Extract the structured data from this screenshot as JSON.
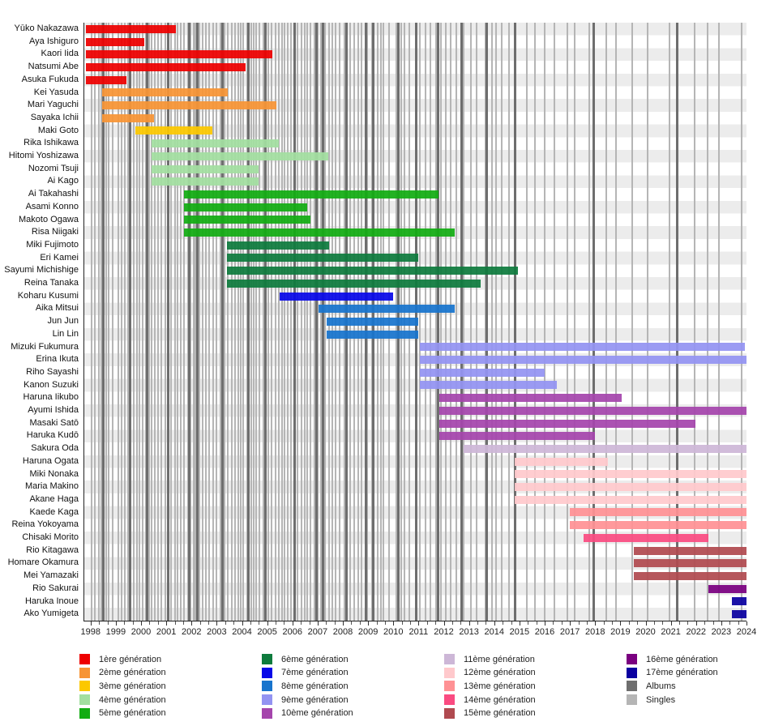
{
  "chart_data": {
    "type": "bar",
    "subtype": "gantt-membership-timeline",
    "title": "",
    "x_axis": {
      "min": 1997.75,
      "max": 2024.0,
      "tick_years": [
        1998,
        1999,
        2000,
        2001,
        2002,
        2003,
        2004,
        2005,
        2006,
        2007,
        2008,
        2009,
        2010,
        2011,
        2012,
        2013,
        2014,
        2015,
        2016,
        2017,
        2018,
        2019,
        2020,
        2021,
        2022,
        2023,
        2024
      ]
    },
    "generations": [
      {
        "id": 1,
        "label": "1ère génération",
        "color": "#EE0000"
      },
      {
        "id": 2,
        "label": "2ème génération",
        "color": "#F79435"
      },
      {
        "id": 3,
        "label": "3ème génération",
        "color": "#FCC800"
      },
      {
        "id": 4,
        "label": "4ème génération",
        "color": "#A2DFA0"
      },
      {
        "id": 5,
        "label": "5ème génération",
        "color": "#12AC12"
      },
      {
        "id": 6,
        "label": "6ème génération",
        "color": "#0E7B3D"
      },
      {
        "id": 7,
        "label": "7ème génération",
        "color": "#0707E8"
      },
      {
        "id": 8,
        "label": "8ème génération",
        "color": "#1874CD"
      },
      {
        "id": 9,
        "label": "9ème génération",
        "color": "#9393F2"
      },
      {
        "id": 10,
        "label": "10ème génération",
        "color": "#A545AC"
      },
      {
        "id": 11,
        "label": "11ème génération",
        "color": "#CDB7D7"
      },
      {
        "id": 12,
        "label": "12ème génération",
        "color": "#FFC9CC"
      },
      {
        "id": 13,
        "label": "13ème génération",
        "color": "#FF9194"
      },
      {
        "id": 14,
        "label": "14ème génération",
        "color": "#FA4B81"
      },
      {
        "id": 15,
        "label": "15ème génération",
        "color": "#B04A50"
      },
      {
        "id": 16,
        "label": "16ème génération",
        "color": "#7A0080"
      },
      {
        "id": 17,
        "label": "17ème génération",
        "color": "#0A00A0"
      }
    ],
    "members": [
      {
        "name": "Yūko Nakazawa",
        "gen": 1,
        "start": 1997.82,
        "end": 2001.37
      },
      {
        "name": "Aya Ishiguro",
        "gen": 1,
        "start": 1997.82,
        "end": 2000.12
      },
      {
        "name": "Kaori Iida",
        "gen": 1,
        "start": 1997.82,
        "end": 2005.2
      },
      {
        "name": "Natsumi Abe",
        "gen": 1,
        "start": 1997.82,
        "end": 2004.15
      },
      {
        "name": "Asuka Fukuda",
        "gen": 1,
        "start": 1997.82,
        "end": 1999.42
      },
      {
        "name": "Kei Yasuda",
        "gen": 2,
        "start": 1998.45,
        "end": 2003.45
      },
      {
        "name": "Mari Yaguchi",
        "gen": 2,
        "start": 1998.45,
        "end": 2005.37
      },
      {
        "name": "Sayaka Ichii",
        "gen": 2,
        "start": 1998.45,
        "end": 2000.5
      },
      {
        "name": "Maki Goto",
        "gen": 3,
        "start": 1999.78,
        "end": 2002.82
      },
      {
        "name": "Rika Ishikawa",
        "gen": 4,
        "start": 2000.42,
        "end": 2005.45
      },
      {
        "name": "Hitomi Yoshizawa",
        "gen": 4,
        "start": 2000.42,
        "end": 2007.42
      },
      {
        "name": "Nozomi Tsuji",
        "gen": 4,
        "start": 2000.42,
        "end": 2004.65
      },
      {
        "name": "Ai Kago",
        "gen": 4,
        "start": 2000.42,
        "end": 2004.65
      },
      {
        "name": "Ai Takahashi",
        "gen": 5,
        "start": 2001.7,
        "end": 2011.78
      },
      {
        "name": "Asami Konno",
        "gen": 5,
        "start": 2001.7,
        "end": 2006.6
      },
      {
        "name": "Makoto Ogawa",
        "gen": 5,
        "start": 2001.7,
        "end": 2006.7
      },
      {
        "name": "Risa Niigaki",
        "gen": 5,
        "start": 2001.7,
        "end": 2012.42
      },
      {
        "name": "Miki Fujimoto",
        "gen": 6,
        "start": 2003.4,
        "end": 2007.45
      },
      {
        "name": "Eri Kamei",
        "gen": 6,
        "start": 2003.4,
        "end": 2011.0
      },
      {
        "name": "Sayumi Michishige",
        "gen": 6,
        "start": 2003.4,
        "end": 2014.95
      },
      {
        "name": "Reina Tanaka",
        "gen": 6,
        "start": 2003.4,
        "end": 2013.45
      },
      {
        "name": "Koharu Kusumi",
        "gen": 7,
        "start": 2005.5,
        "end": 2010.0
      },
      {
        "name": "Aika Mitsui",
        "gen": 8,
        "start": 2007.05,
        "end": 2012.42
      },
      {
        "name": "Jun Jun",
        "gen": 8,
        "start": 2007.37,
        "end": 2011.0
      },
      {
        "name": "Lin Lin",
        "gen": 8,
        "start": 2007.37,
        "end": 2011.0
      },
      {
        "name": "Mizuki Fukumura",
        "gen": 9,
        "start": 2011.05,
        "end": 2023.92
      },
      {
        "name": "Erina Ikuta",
        "gen": 9,
        "start": 2011.05,
        "end": 2024.0
      },
      {
        "name": "Riho Sayashi",
        "gen": 9,
        "start": 2011.05,
        "end": 2016.0
      },
      {
        "name": "Kanon Suzuki",
        "gen": 9,
        "start": 2011.05,
        "end": 2016.48
      },
      {
        "name": "Haruna Iikubo",
        "gen": 10,
        "start": 2011.82,
        "end": 2019.05
      },
      {
        "name": "Ayumi Ishida",
        "gen": 10,
        "start": 2011.82,
        "end": 2024.0
      },
      {
        "name": "Masaki Satō",
        "gen": 10,
        "start": 2011.82,
        "end": 2021.97
      },
      {
        "name": "Haruka Kudō",
        "gen": 10,
        "start": 2011.82,
        "end": 2018.0
      },
      {
        "name": "Sakura Oda",
        "gen": 11,
        "start": 2012.8,
        "end": 2024.0
      },
      {
        "name": "Haruna Ogata",
        "gen": 12,
        "start": 2014.8,
        "end": 2018.5
      },
      {
        "name": "Miki Nonaka",
        "gen": 12,
        "start": 2014.8,
        "end": 2024.0
      },
      {
        "name": "Maria Makino",
        "gen": 12,
        "start": 2014.8,
        "end": 2024.0
      },
      {
        "name": "Akane Haga",
        "gen": 12,
        "start": 2014.8,
        "end": 2024.0
      },
      {
        "name": "Kaede Kaga",
        "gen": 13,
        "start": 2017.0,
        "end": 2024.0
      },
      {
        "name": "Reina Yokoyama",
        "gen": 13,
        "start": 2017.0,
        "end": 2024.0
      },
      {
        "name": "Chisaki Morito",
        "gen": 14,
        "start": 2017.55,
        "end": 2022.5
      },
      {
        "name": "Rio Kitagawa",
        "gen": 15,
        "start": 2019.55,
        "end": 2024.0
      },
      {
        "name": "Homare Okamura",
        "gen": 15,
        "start": 2019.55,
        "end": 2024.0
      },
      {
        "name": "Mei Yamazaki",
        "gen": 15,
        "start": 2019.55,
        "end": 2024.0
      },
      {
        "name": "Rio Sakurai",
        "gen": 16,
        "start": 2022.5,
        "end": 2024.0
      },
      {
        "name": "Haruka Inoue",
        "gen": 17,
        "start": 2023.42,
        "end": 2024.0
      },
      {
        "name": "Ako Yumigeta",
        "gen": 17,
        "start": 2023.42,
        "end": 2024.0
      }
    ],
    "releases": {
      "album_label": "Albums",
      "single_label": "Singles",
      "album_color": "#6E6E6E",
      "single_color": "#B5B5B5",
      "albums": [
        1998.52,
        1999.57,
        2000.25,
        2001.08,
        2001.9,
        2002.23,
        2003.23,
        2004.25,
        2004.93,
        2006.1,
        2006.95,
        2007.22,
        2008.16,
        2008.9,
        2009.21,
        2010.21,
        2010.92,
        2011.78,
        2012.7,
        2013.7,
        2014.83,
        2017.93,
        2021.25
      ],
      "singles": [
        1998.05,
        1998.18,
        1998.32,
        1998.42,
        1998.62,
        1998.72,
        1998.88,
        1999.1,
        1999.22,
        1999.35,
        1999.48,
        1999.56,
        1999.7,
        1999.85,
        1999.95,
        2000.07,
        2000.2,
        2000.32,
        2000.42,
        2000.55,
        2000.68,
        2000.8,
        2000.95,
        2001.05,
        2001.2,
        2001.35,
        2001.45,
        2001.58,
        2001.7,
        2001.85,
        2001.95,
        2002.08,
        2002.15,
        2002.3,
        2002.45,
        2002.57,
        2002.7,
        2002.85,
        2003.0,
        2003.15,
        2003.3,
        2003.45,
        2003.6,
        2003.72,
        2003.85,
        2003.95,
        2004.05,
        2004.2,
        2004.37,
        2004.48,
        2004.56,
        2004.7,
        2004.85,
        2005.05,
        2005.18,
        2005.33,
        2005.45,
        2005.58,
        2005.7,
        2005.82,
        2005.95,
        2006.1,
        2006.2,
        2006.35,
        2006.48,
        2006.6,
        2006.72,
        2006.86,
        2007.0,
        2007.13,
        2007.3,
        2007.45,
        2007.57,
        2007.7,
        2007.88,
        2008.05,
        2008.3,
        2008.45,
        2008.6,
        2008.74,
        2008.95,
        2009.14,
        2009.37,
        2009.5,
        2009.62,
        2009.83,
        2010.12,
        2010.3,
        2010.45,
        2010.65,
        2010.88,
        2011.05,
        2011.27,
        2011.46,
        2011.68,
        2011.88,
        2012.08,
        2012.28,
        2012.5,
        2012.78,
        2013.07,
        2013.3,
        2013.65,
        2013.9,
        2014.08,
        2014.3,
        2014.6,
        2014.8,
        2015.3,
        2015.63,
        2015.99,
        2016.37,
        2016.9,
        2017.18,
        2017.77,
        2018.43,
        2018.82,
        2019.46,
        2020.07,
        2020.96,
        2021.93,
        2022.45,
        2022.9,
        2023.8
      ]
    }
  },
  "legend": {
    "columns": [
      [
        "gen1",
        "gen2",
        "gen3",
        "gen4",
        "gen5"
      ],
      [
        "gen6",
        "gen7",
        "gen8",
        "gen9",
        "gen10"
      ],
      [
        "gen11",
        "gen12",
        "gen13",
        "gen14",
        "gen15"
      ],
      [
        "gen16",
        "gen17",
        "albums",
        "singles"
      ]
    ]
  }
}
